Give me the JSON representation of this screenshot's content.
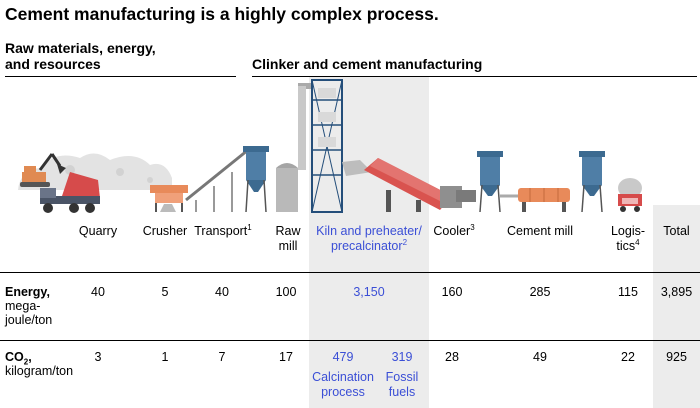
{
  "title": "Cement manufacturing is a highly complex process.",
  "sections": {
    "raw_line1": "Raw materials, energy,",
    "raw_line2": "and resources",
    "clinker": "Clinker and cement manufacturing"
  },
  "columns": [
    {
      "label": "Quarry",
      "sup": ""
    },
    {
      "label": "Crusher",
      "sup": ""
    },
    {
      "label": "Transport",
      "sup": "1"
    },
    {
      "label_line1": "Raw",
      "label_line2": "mill"
    },
    {
      "label_line1": "Kiln and preheater/",
      "label_line2": "precalcinator",
      "sup": "2"
    },
    {
      "label": "Cooler",
      "sup": "3"
    },
    {
      "label": "Cement mill"
    },
    {
      "label_line1": "Logis-",
      "label_line2": "tics",
      "sup": "4"
    },
    {
      "label": "Total"
    }
  ],
  "rows": {
    "energy": {
      "label_bold": "Energy,",
      "label_rest1": "mega-",
      "label_rest2": "joule/ton",
      "values": [
        "40",
        "5",
        "40",
        "100",
        "3,150",
        "160",
        "285",
        "115",
        "3,895"
      ]
    },
    "co2": {
      "label_bold_main": "CO",
      "label_bold_sub": "2",
      "label_bold_comma": ",",
      "label_rest": "kilogram/ton",
      "values": [
        "3",
        "1",
        "7",
        "17",
        "479",
        "319",
        "28",
        "49",
        "22",
        "925"
      ],
      "notes": {
        "calcination_line1": "Calcination",
        "calcination_line2": "process",
        "fossil_line1": "Fossil",
        "fossil_line2": "fuels"
      }
    }
  },
  "colors": {
    "accent_blue": "#3b4fd6",
    "band_gray": "#ececec",
    "steel_blue": "#4f7ea6",
    "kiln_red": "#d9534f",
    "truck_red": "#d64b4b",
    "orange": "#e88a5a"
  }
}
